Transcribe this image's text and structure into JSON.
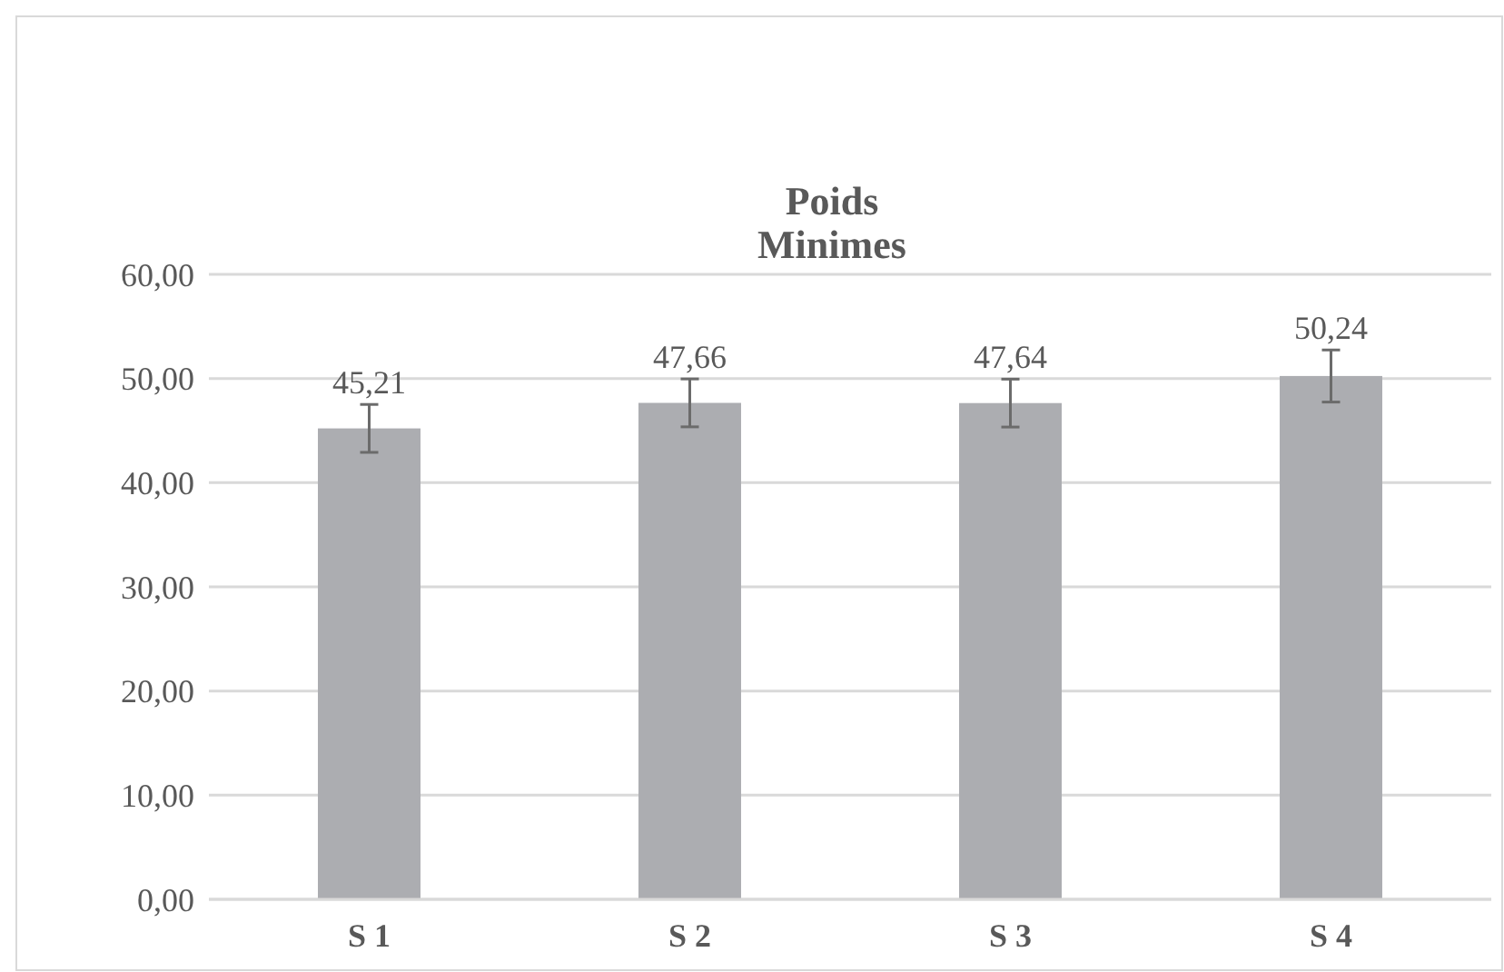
{
  "chart_data": {
    "type": "bar",
    "title": "Poids",
    "subtitle": "Minimes",
    "categories": [
      "S 1",
      "S 2",
      "S 3",
      "S 4"
    ],
    "values": [
      45.21,
      47.66,
      47.64,
      50.24
    ],
    "errors": [
      2.3,
      2.3,
      2.3,
      2.5
    ],
    "value_labels": [
      "45,21",
      "47,66",
      "47,64",
      "50,24"
    ],
    "color": "#acadb1",
    "ylim": [
      0,
      60
    ],
    "yticks": [
      {
        "value": 0,
        "label": "0,00"
      },
      {
        "value": 10,
        "label": "10,00"
      },
      {
        "value": 20,
        "label": "20,00"
      },
      {
        "value": 30,
        "label": "30,00"
      },
      {
        "value": 40,
        "label": "40,00"
      },
      {
        "value": 50,
        "label": "50,00"
      },
      {
        "value": 60,
        "label": "60,00"
      }
    ],
    "grid": "y"
  }
}
